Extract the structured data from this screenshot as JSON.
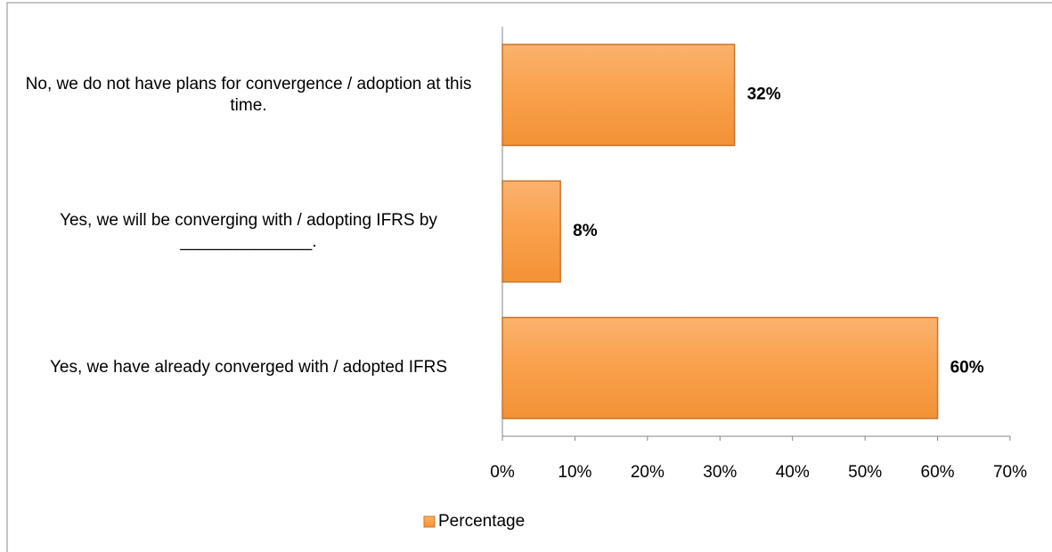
{
  "chart_data": {
    "type": "bar",
    "orientation": "horizontal",
    "categories": [
      "No, we do not have plans for convergence / adoption at this time.",
      "Yes, we will be converging with / adopting IFRS by ______________.",
      "Yes, we have already converged with / adopted IFRS"
    ],
    "series": [
      {
        "name": "Percentage",
        "color": "#f79646",
        "values": [
          32,
          8,
          60
        ],
        "value_labels": [
          "32%",
          "8%",
          "60%"
        ]
      }
    ],
    "xlim": [
      0,
      70
    ],
    "xticks": [
      {
        "value": 0,
        "label": "0%"
      },
      {
        "value": 10,
        "label": "10%"
      },
      {
        "value": 20,
        "label": "20%"
      },
      {
        "value": 30,
        "label": "30%"
      },
      {
        "value": 40,
        "label": "40%"
      },
      {
        "value": 50,
        "label": "50%"
      },
      {
        "value": 60,
        "label": "60%"
      },
      {
        "value": 70,
        "label": "70%"
      }
    ],
    "grid": false,
    "legend": "bottom"
  }
}
